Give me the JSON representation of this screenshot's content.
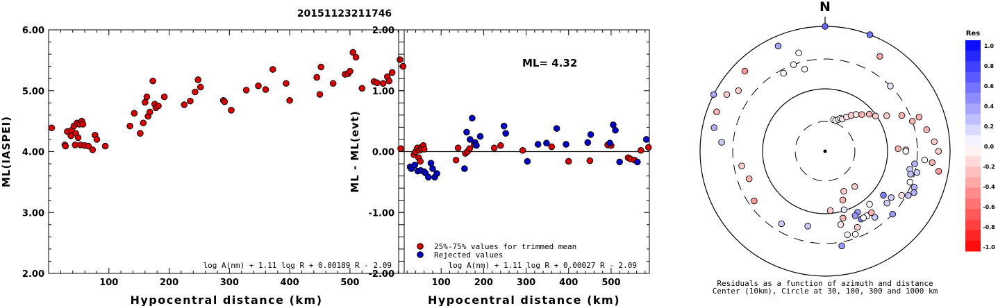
{
  "title": "20151123211746",
  "chart_data": [
    {
      "type": "scatter",
      "ylabel": "ML(IASPEI)",
      "xlabel": "Hypocentral distance (km)",
      "xlim": [
        0,
        590
      ],
      "ylim": [
        2.0,
        6.0
      ],
      "xticks": [
        100,
        200,
        300,
        400,
        500
      ],
      "yticks": [
        "2.00",
        "3.00",
        "4.00",
        "5.00",
        "6.00"
      ],
      "formula": "log A(nm) + 1.11 log R + 0.00189 R - 2.09",
      "marker_color": "#dd0000",
      "points": [
        [
          5,
          4.39
        ],
        [
          27,
          4.11
        ],
        [
          28,
          4.09
        ],
        [
          31,
          4.33
        ],
        [
          37,
          4.26
        ],
        [
          38,
          4.35
        ],
        [
          42,
          4.42
        ],
        [
          44,
          4.11
        ],
        [
          45,
          4.3
        ],
        [
          47,
          4.47
        ],
        [
          49,
          4.23
        ],
        [
          51,
          4.45
        ],
        [
          53,
          4.11
        ],
        [
          55,
          4.5
        ],
        [
          57,
          4.45
        ],
        [
          60,
          4.1
        ],
        [
          66,
          4.09
        ],
        [
          73,
          4.03
        ],
        [
          77,
          4.27
        ],
        [
          80,
          4.2
        ],
        [
          94,
          4.09
        ],
        [
          135,
          4.42
        ],
        [
          142,
          4.63
        ],
        [
          152,
          4.3
        ],
        [
          157,
          4.47
        ],
        [
          160,
          4.81
        ],
        [
          163,
          4.9
        ],
        [
          165,
          4.58
        ],
        [
          168,
          4.65
        ],
        [
          173,
          5.16
        ],
        [
          176,
          4.78
        ],
        [
          178,
          4.72
        ],
        [
          182,
          4.75
        ],
        [
          192,
          4.9
        ],
        [
          225,
          4.77
        ],
        [
          235,
          4.83
        ],
        [
          243,
          4.98
        ],
        [
          248,
          5.18
        ],
        [
          252,
          5.06
        ],
        [
          290,
          4.84
        ],
        [
          292,
          4.82
        ],
        [
          303,
          4.68
        ],
        [
          328,
          5.01
        ],
        [
          348,
          5.08
        ],
        [
          360,
          5.02
        ],
        [
          372,
          5.35
        ],
        [
          394,
          5.12
        ],
        [
          400,
          4.84
        ],
        [
          445,
          5.22
        ],
        [
          450,
          4.94
        ],
        [
          452,
          5.39
        ],
        [
          472,
          5.12
        ],
        [
          492,
          5.27
        ],
        [
          497,
          5.28
        ],
        [
          500,
          5.32
        ],
        [
          505,
          5.63
        ],
        [
          510,
          5.55
        ],
        [
          520,
          5.04
        ],
        [
          540,
          5.15
        ],
        [
          545,
          5.13
        ],
        [
          555,
          5.12
        ],
        [
          562,
          5.23
        ],
        [
          565,
          5.16
        ],
        [
          570,
          5.3
        ],
        [
          583,
          5.51
        ],
        [
          588,
          5.4
        ]
      ]
    },
    {
      "type": "scatter",
      "ylabel": "ML - ML(evt)",
      "xlabel": "Hypocentral distance (km)",
      "xlim": [
        0,
        590
      ],
      "ylim": [
        -2.0,
        2.0
      ],
      "xticks": [
        100,
        200,
        300,
        400,
        500
      ],
      "yticks": [
        "-2.00",
        "-1.00",
        "0.00",
        "1.00",
        "2.00"
      ],
      "annotation": "ML= 4.32",
      "formula": "log A(nm) + 1.11 log R + 0.00027 R - 2.09",
      "legend": [
        {
          "label": "25%-75% values for trimmed mean",
          "color": "#dd0000"
        },
        {
          "label": "Rejected values",
          "color": "#0000cc"
        }
      ],
      "legend_position": "bottom-left",
      "reference_line": 0.0,
      "series": [
        {
          "color": "#dd0000",
          "points": [
            [
              5,
              0.05
            ],
            [
              36,
              -0.05
            ],
            [
              40,
              0.0
            ],
            [
              44,
              0.06
            ],
            [
              47,
              -0.1
            ],
            [
              49,
              0.02
            ],
            [
              51,
              -0.16
            ],
            [
              53,
              0.07
            ],
            [
              55,
              0.04
            ],
            [
              58,
              0.1
            ],
            [
              60,
              0.04
            ],
            [
              135,
              -0.14
            ],
            [
              140,
              0.06
            ],
            [
              157,
              -0.03
            ],
            [
              162,
              0.0
            ],
            [
              167,
              0.05
            ],
            [
              178,
              0.12
            ],
            [
              225,
              0.06
            ],
            [
              240,
              0.1
            ],
            [
              292,
              0.02
            ],
            [
              360,
              0.08
            ],
            [
              400,
              -0.16
            ],
            [
              450,
              -0.15
            ],
            [
              492,
              0.11
            ],
            [
              500,
              0.1
            ],
            [
              540,
              -0.1
            ],
            [
              545,
              -0.12
            ],
            [
              555,
              -0.14
            ],
            [
              570,
              0.02
            ],
            [
              588,
              0.07
            ]
          ]
        },
        {
          "color": "#0000cc",
          "points": [
            [
              27,
              -0.25
            ],
            [
              30,
              -0.28
            ],
            [
              38,
              -0.22
            ],
            [
              45,
              -0.32
            ],
            [
              52,
              -0.31
            ],
            [
              60,
              -0.33
            ],
            [
              63,
              -0.35
            ],
            [
              70,
              -0.42
            ],
            [
              76,
              -0.19
            ],
            [
              80,
              -0.28
            ],
            [
              85,
              -0.42
            ],
            [
              90,
              -0.36
            ],
            [
              155,
              -0.28
            ],
            [
              160,
              0.32
            ],
            [
              168,
              0.2
            ],
            [
              173,
              0.55
            ],
            [
              180,
              0.15
            ],
            [
              183,
              0.1
            ],
            [
              192,
              0.25
            ],
            [
              248,
              0.42
            ],
            [
              252,
              0.3
            ],
            [
              303,
              -0.16
            ],
            [
              328,
              0.12
            ],
            [
              348,
              0.14
            ],
            [
              372,
              0.38
            ],
            [
              394,
              0.12
            ],
            [
              445,
              0.15
            ],
            [
              452,
              0.28
            ],
            [
              497,
              0.14
            ],
            [
              505,
              0.44
            ],
            [
              510,
              0.35
            ],
            [
              520,
              -0.17
            ],
            [
              562,
              -0.17
            ],
            [
              583,
              0.2
            ]
          ]
        }
      ]
    },
    {
      "type": "scatter",
      "subtype": "polar",
      "north_label": "N",
      "caption_line1": "Residuals as a function of azimuth and distance",
      "caption_line2": "Center (10km), Circle at 30, 100, 300 and 1000 km",
      "colorbar": {
        "title": "Res",
        "labels": [
          "1.0",
          "0.8",
          "0.6",
          "0.4",
          "0.2",
          "0.0",
          "-0.2",
          "-0.4",
          "-0.6",
          "-0.8",
          "-1.0"
        ],
        "max": 1.0,
        "min": -1.0,
        "positive_color": "#0000ff",
        "negative_color": "#ff0000"
      },
      "points": [
        [
          0,
          65,
          0.6
        ],
        [
          21,
          65,
          0.55
        ],
        [
          -24,
          60,
          0.35
        ],
        [
          30,
          57,
          -0.35
        ],
        [
          -63,
          65,
          0.35
        ],
        [
          -15,
          53,
          0.0
        ],
        [
          45,
          48,
          0.1
        ],
        [
          70,
          52,
          -0.3
        ],
        [
          89,
          42,
          -0.25
        ],
        [
          88,
          38,
          -0.3
        ],
        [
          90,
          42,
          0.0
        ],
        [
          95,
          52,
          0.0
        ],
        [
          98,
          47,
          0.3
        ],
        [
          102,
          45,
          0.2
        ],
        [
          103,
          49,
          0.2
        ],
        [
          105,
          46,
          0.25
        ],
        [
          110,
          47,
          0.0
        ],
        [
          112,
          50,
          0.3
        ],
        [
          115,
          51,
          0.3
        ],
        [
          118,
          49,
          0.25
        ],
        [
          120,
          46,
          -0.1
        ],
        [
          125,
          42,
          0.2
        ],
        [
          127,
          38,
          0.5
        ],
        [
          130,
          42,
          0.2
        ],
        [
          133,
          48,
          0.4
        ],
        [
          140,
          36,
          0.0
        ],
        [
          143,
          43,
          0.2
        ],
        [
          147,
          40,
          0.0
        ],
        [
          152,
          36,
          0.4
        ],
        [
          152,
          40,
          0.5
        ],
        [
          155,
          37,
          0.4
        ],
        [
          157,
          43,
          -0.2
        ],
        [
          160,
          46,
          0.0
        ],
        [
          165,
          45,
          0.0
        ],
        [
          170,
          50,
          0.4
        ],
        [
          150,
          40,
          0.0
        ],
        [
          15,
          17,
          0.0
        ],
        [
          19,
          17,
          0.0
        ],
        [
          23,
          18,
          0.0
        ],
        [
          25,
          19,
          0.0
        ],
        [
          28,
          19,
          -0.1
        ],
        [
          32,
          21,
          -0.1
        ],
        [
          36,
          23,
          -0.2
        ],
        [
          40,
          25,
          -0.1
        ],
        [
          45,
          27,
          -0.3
        ],
        [
          50,
          30,
          -0.3
        ],
        [
          55,
          32,
          -0.2
        ],
        [
          60,
          37,
          -0.2
        ],
        [
          65,
          44,
          -0.3
        ],
        [
          71,
          48,
          -0.3
        ],
        [
          78,
          54,
          -0.3
        ],
        [
          85,
          57,
          -0.2
        ],
        [
          90,
          59,
          -0.2
        ],
        [
          96,
          56,
          -0.3
        ],
        [
          100,
          60,
          -0.4
        ],
        [
          143,
          40,
          -0.3
        ],
        [
          160,
          27,
          -0.3
        ],
        [
          162,
          32,
          0.1
        ],
        [
          165,
          36,
          -0.3
        ],
        [
          168,
          39,
          -0.1
        ],
        [
          140,
          24,
          -0.2
        ],
        [
          155,
          23,
          -0.2
        ],
        [
          175,
          31,
          -0.2
        ],
        [
          193,
          40,
          0.2
        ],
        [
          211,
          44,
          0.2
        ],
        [
          235,
          45,
          -0.4
        ],
        [
          250,
          42,
          -0.3
        ],
        [
          260,
          44,
          -0.2
        ],
        [
          275,
          54,
          0.2
        ],
        [
          282,
          59,
          0.3
        ],
        [
          290,
          60,
          -0.3
        ],
        [
          300,
          59,
          -0.2
        ],
        [
          305,
          55,
          -0.2
        ],
        [
          315,
          59,
          -0.4
        ],
        [
          332,
          46,
          0.0
        ],
        [
          340,
          48,
          0.0
        ],
        [
          346,
          44,
          0.0
        ]
      ]
    }
  ]
}
